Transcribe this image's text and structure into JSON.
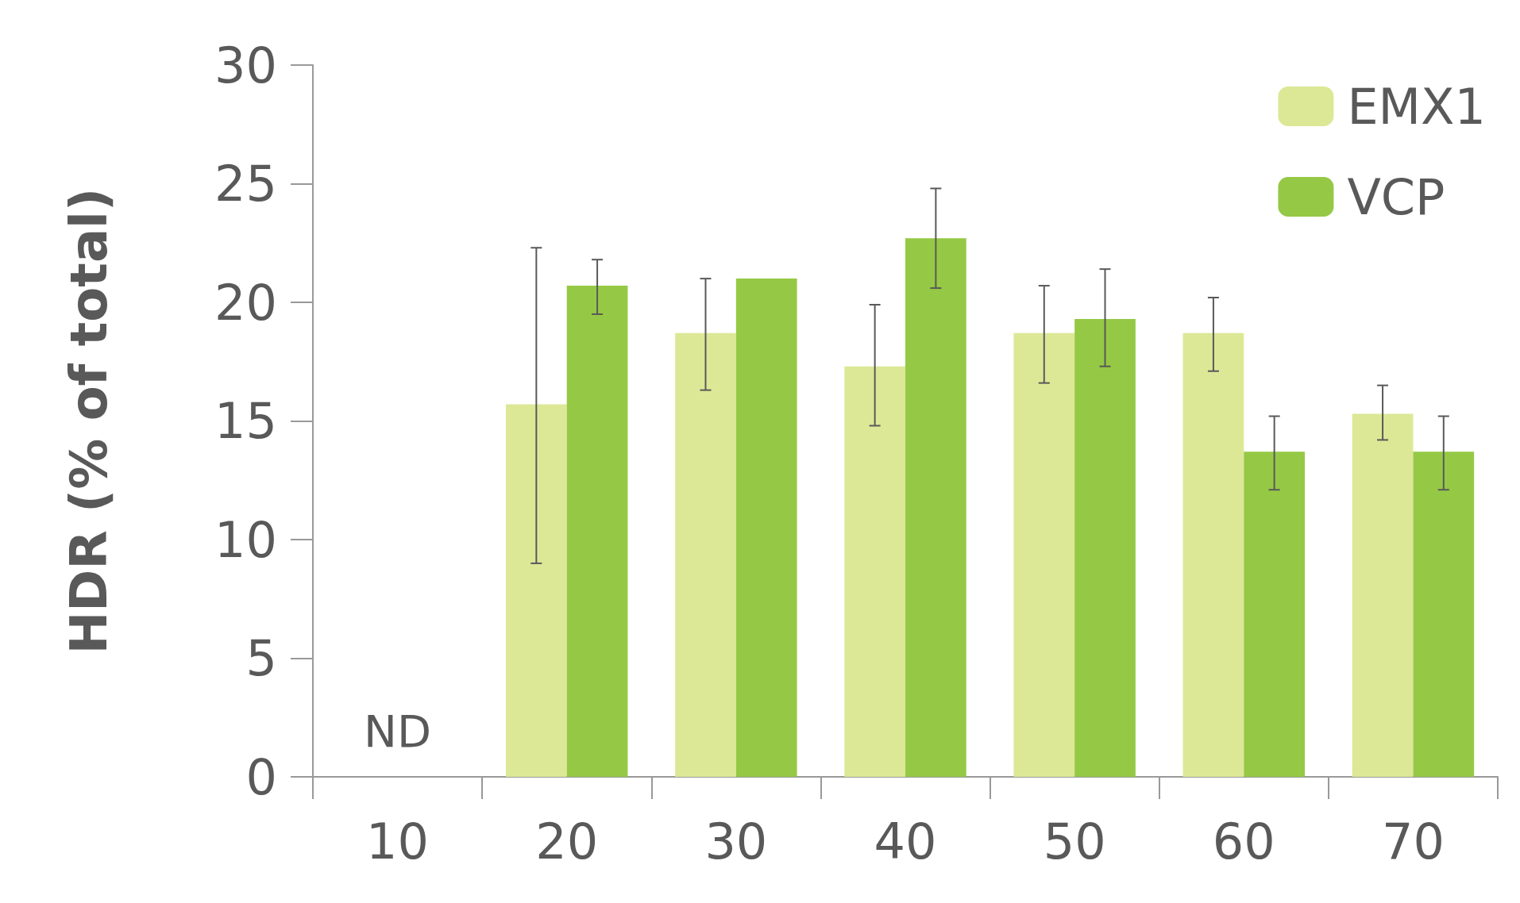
{
  "chart_data": {
    "type": "bar",
    "ylabel": "HDR (% of total)",
    "categories": [
      "10",
      "20",
      "30",
      "40",
      "50",
      "60",
      "70"
    ],
    "series": [
      {
        "name": "EMX1",
        "color": "#dce896",
        "values": [
          null,
          15.7,
          18.7,
          17.3,
          18.7,
          18.7,
          15.3
        ],
        "errors": [
          null,
          [
            9.0,
            22.3
          ],
          [
            16.3,
            21.0
          ],
          [
            14.8,
            19.9
          ],
          [
            16.6,
            20.7
          ],
          [
            17.1,
            20.2
          ],
          [
            14.2,
            16.5
          ]
        ]
      },
      {
        "name": "VCP",
        "color": "#95c945",
        "values": [
          null,
          20.7,
          21.0,
          22.7,
          19.3,
          13.7,
          13.7
        ],
        "errors": [
          null,
          [
            19.5,
            21.8
          ],
          null,
          [
            20.6,
            24.8
          ],
          [
            17.3,
            21.4
          ],
          [
            12.1,
            15.2
          ],
          [
            12.1,
            15.2
          ]
        ]
      }
    ],
    "ylim": [
      0,
      30
    ],
    "yticks": [
      0,
      5,
      10,
      15,
      20,
      25,
      30
    ],
    "grid": false,
    "legend": "top right",
    "annotations": [
      "ND"
    ]
  }
}
